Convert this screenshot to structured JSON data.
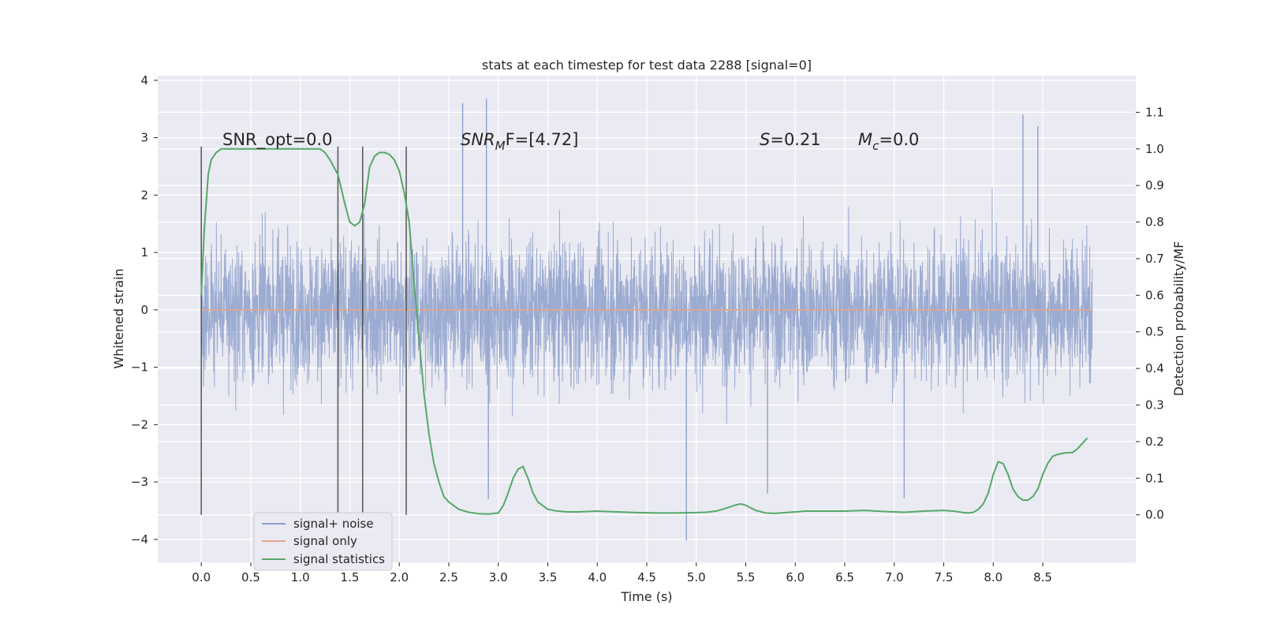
{
  "chart_data": {
    "type": "line",
    "title": "stats at each timestep for test data 2288 [signal=0]",
    "xlabel": "Time (s)",
    "ylabel": "Whitened strain",
    "y2label": "Detection probability/MF",
    "xlim": [
      -0.44,
      9.44
    ],
    "ylim": [
      -4.4,
      4.08
    ],
    "y2lim": [
      -0.13,
      1.2
    ],
    "x_ticks": [
      0.0,
      0.5,
      1.0,
      1.5,
      2.0,
      2.5,
      3.0,
      3.5,
      4.0,
      4.5,
      5.0,
      5.5,
      6.0,
      6.5,
      7.0,
      7.5,
      8.0,
      8.5
    ],
    "y_ticks": [
      4,
      3,
      2,
      1,
      0,
      -1,
      -2,
      -3,
      -4
    ],
    "y2_ticks": [
      0.0,
      0.1,
      0.2,
      0.3,
      0.4,
      0.5,
      0.6,
      0.7,
      0.8,
      0.9,
      1.0,
      1.1
    ],
    "grid": true,
    "legend_position": "lower-left",
    "annotations": {
      "snr_opt": "SNR_opt=0.0",
      "snr_mf_prefix": "SNR",
      "snr_mf_sub": "M",
      "snr_mf_suffix": "F=[4.72]",
      "s_var": "S",
      "s_value": "=0.21",
      "mc_var": "M",
      "mc_sub": "c",
      "mc_value": "=0.0"
    },
    "vertical_markers_x": [
      0.0,
      1.38,
      1.63,
      2.07
    ],
    "series": [
      {
        "name": "signal+ noise",
        "color": "#8da0cb",
        "axis": "left",
        "x_range": [
          0.0,
          9.0
        ],
        "typical_envelope": [
          -1.6,
          1.6
        ],
        "notable_peaks": [
          {
            "x": 2.64,
            "y": 3.6
          },
          {
            "x": 2.88,
            "y": 3.68
          },
          {
            "x": 4.9,
            "y": -4.02
          },
          {
            "x": 8.3,
            "y": 3.4
          },
          {
            "x": 8.45,
            "y": 3.2
          },
          {
            "x": 2.9,
            "y": -3.3
          },
          {
            "x": 5.72,
            "y": -3.2
          },
          {
            "x": 7.1,
            "y": -3.28
          }
        ]
      },
      {
        "name": "signal only",
        "color": "#e5a68a",
        "axis": "left",
        "x": [
          0.0,
          9.0
        ],
        "y": [
          0.0,
          0.0
        ]
      },
      {
        "name": "signal statistics",
        "color": "#55a868",
        "axis": "right",
        "x": [
          0.0,
          0.03,
          0.07,
          0.1,
          0.15,
          0.2,
          0.3,
          0.5,
          0.8,
          1.0,
          1.1,
          1.2,
          1.25,
          1.3,
          1.38,
          1.45,
          1.5,
          1.55,
          1.6,
          1.65,
          1.7,
          1.75,
          1.8,
          1.85,
          1.9,
          1.95,
          2.0,
          2.05,
          2.1,
          2.15,
          2.2,
          2.25,
          2.3,
          2.35,
          2.4,
          2.45,
          2.5,
          2.55,
          2.6,
          2.7,
          2.8,
          2.9,
          3.0,
          3.05,
          3.1,
          3.15,
          3.2,
          3.25,
          3.3,
          3.35,
          3.4,
          3.45,
          3.5,
          3.6,
          3.7,
          3.8,
          4.0,
          4.2,
          4.4,
          4.6,
          4.8,
          5.0,
          5.1,
          5.2,
          5.3,
          5.4,
          5.45,
          5.5,
          5.6,
          5.7,
          5.8,
          5.9,
          6.0,
          6.1,
          6.3,
          6.5,
          6.7,
          6.9,
          7.1,
          7.3,
          7.5,
          7.6,
          7.7,
          7.75,
          7.8,
          7.85,
          7.9,
          7.95,
          8.0,
          8.05,
          8.1,
          8.15,
          8.2,
          8.25,
          8.3,
          8.35,
          8.4,
          8.45,
          8.5,
          8.55,
          8.6,
          8.65,
          8.7,
          8.75,
          8.8,
          8.85,
          8.9,
          8.95
        ],
        "y": [
          0.6,
          0.78,
          0.93,
          0.97,
          0.99,
          1.0,
          1.0,
          1.0,
          1.0,
          1.0,
          1.0,
          1.0,
          0.99,
          0.97,
          0.93,
          0.85,
          0.8,
          0.79,
          0.8,
          0.85,
          0.95,
          0.98,
          0.99,
          0.99,
          0.985,
          0.97,
          0.94,
          0.88,
          0.8,
          0.63,
          0.48,
          0.33,
          0.22,
          0.14,
          0.09,
          0.05,
          0.035,
          0.025,
          0.015,
          0.007,
          0.003,
          0.002,
          0.005,
          0.025,
          0.06,
          0.1,
          0.125,
          0.132,
          0.1,
          0.06,
          0.035,
          0.025,
          0.015,
          0.01,
          0.008,
          0.008,
          0.01,
          0.008,
          0.006,
          0.005,
          0.005,
          0.006,
          0.007,
          0.01,
          0.018,
          0.027,
          0.03,
          0.026,
          0.012,
          0.005,
          0.004,
          0.006,
          0.008,
          0.01,
          0.01,
          0.01,
          0.012,
          0.009,
          0.007,
          0.01,
          0.012,
          0.01,
          0.006,
          0.005,
          0.007,
          0.015,
          0.03,
          0.06,
          0.11,
          0.145,
          0.14,
          0.11,
          0.07,
          0.05,
          0.04,
          0.04,
          0.05,
          0.07,
          0.11,
          0.14,
          0.16,
          0.165,
          0.168,
          0.17,
          0.17,
          0.18,
          0.195,
          0.21
        ]
      }
    ]
  },
  "colors": {
    "plot_background": "#eaeaf2",
    "grid": "#ffffff",
    "markers": "#555555"
  }
}
